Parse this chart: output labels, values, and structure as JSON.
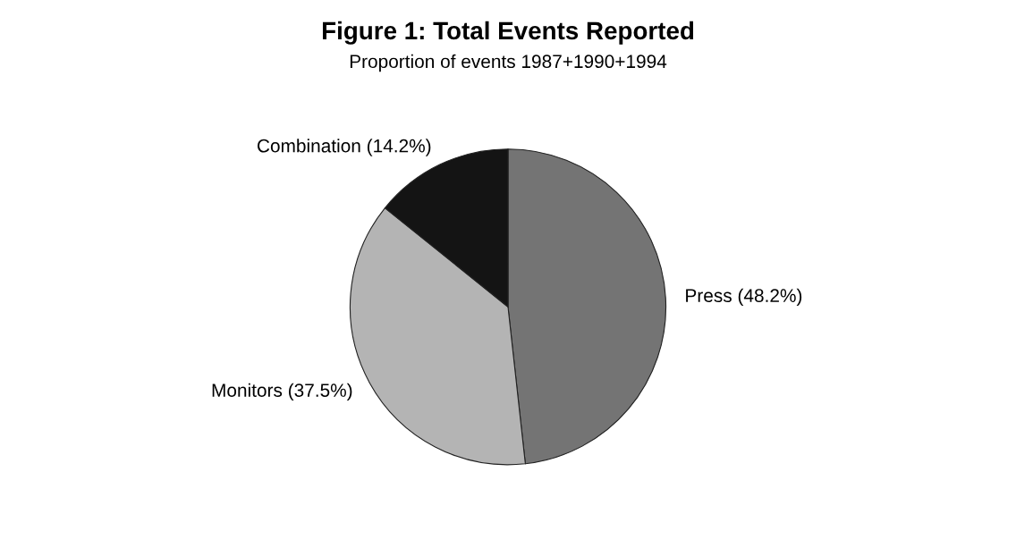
{
  "chart_data": {
    "type": "pie",
    "title": "Figure 1: Total Events Reported",
    "subtitle": "Proportion of events 1987+1990+1994",
    "categories": [
      "Press",
      "Monitors",
      "Combination"
    ],
    "values": [
      48.2,
      37.5,
      14.2
    ],
    "value_labels": [
      "(48.2%)",
      "(37.5%)",
      "(14.2%)"
    ],
    "colors": [
      "#747474",
      "#b4b4b4",
      "#141414"
    ]
  }
}
